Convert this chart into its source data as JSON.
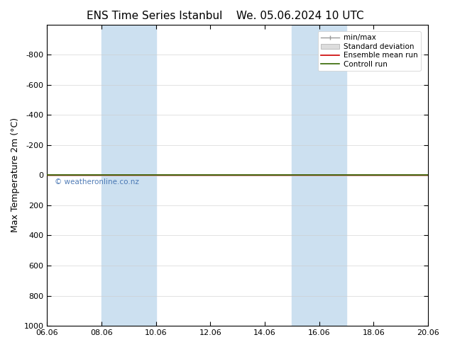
{
  "title_left": "ENS Time Series Istanbul",
  "title_right": "We. 05.06.2024 10 UTC",
  "ylabel": "Max Temperature 2m (°C)",
  "ylim": [
    1000,
    -1000
  ],
  "yticks": [
    -800,
    -600,
    -400,
    -200,
    0,
    200,
    400,
    600,
    800,
    1000
  ],
  "xlim": [
    0,
    14
  ],
  "xtick_positions": [
    0,
    2,
    4,
    6,
    8,
    10,
    12,
    14
  ],
  "xtick_labels": [
    "06.06",
    "08.06",
    "10.06",
    "12.06",
    "14.06",
    "16.06",
    "18.06",
    "20.06"
  ],
  "shaded_bands": [
    {
      "xstart": 2,
      "xend": 4
    },
    {
      "xstart": 9,
      "xend": 11
    }
  ],
  "shade_color": "#cce0f0",
  "control_run_y": 0,
  "control_run_color": "#336600",
  "ensemble_mean_color": "#cc0000",
  "min_max_color": "#999999",
  "std_dev_color": "#cccccc",
  "watermark": "© weatheronline.co.nz",
  "watermark_color": "#3366aa",
  "background_color": "#ffffff",
  "title_fontsize": 11,
  "axis_fontsize": 9,
  "tick_fontsize": 8,
  "legend_fontsize": 7.5
}
